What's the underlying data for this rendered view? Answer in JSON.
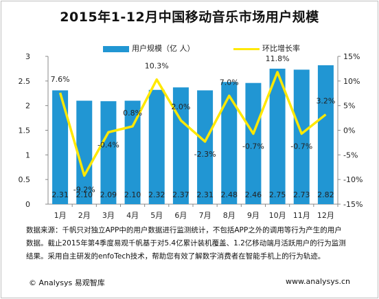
{
  "title": "2015年1-12月中国移动音乐市场用户规模",
  "legend": {
    "bar_label": "用户规模（亿 人）",
    "line_label": "环比增长率"
  },
  "note": "数据来源：千帆只对独立APP中的用户数据进行监测统计，不包括APP之外的调用等行为产生的用户数据。截止2015年第4季度易观千帆基于对5.4亿累计装机覆盖、1.2亿移动端月活跃用户的行为监测结果。采用自主研发的enfoTech技术，帮助您有效了解数字消费者在智能手机上的行为轨迹。",
  "footer": {
    "left": "© Analysys 易观智库",
    "right": "www.analysys.cn"
  },
  "colors": {
    "bar": "#2196d3",
    "line": "#ffe800"
  },
  "chart_data": {
    "type": "bar",
    "categories": [
      "1月",
      "2月",
      "3月",
      "4月",
      "5月",
      "6月",
      "7月",
      "8月",
      "9月",
      "10月",
      "11月",
      "12月"
    ],
    "series": [
      {
        "name": "用户规模（亿 人）",
        "type": "bar",
        "axis": "left",
        "values": [
          2.31,
          2.1,
          2.09,
          2.1,
          2.32,
          2.37,
          2.31,
          2.48,
          2.46,
          2.75,
          2.73,
          2.82
        ],
        "labels": [
          "2.31",
          "2.10",
          "2.09",
          "2.10",
          "2.32",
          "2.37",
          "2.31",
          "2.48",
          "2.46",
          "2.75",
          "2.73",
          "2.82"
        ]
      },
      {
        "name": "环比增长率",
        "type": "line",
        "axis": "right",
        "values": [
          7.6,
          -9.2,
          -0.4,
          0.8,
          10.3,
          2.0,
          -2.3,
          7.0,
          -0.7,
          11.8,
          -0.7,
          3.2
        ],
        "labels": [
          "7.6%",
          "-9.2%",
          "-0.4%",
          "0.8%",
          "10.3%",
          "2.0%",
          "-2.3%",
          "7.0%",
          "-0.7%",
          "11.8%",
          "-0.7%",
          "3.2%"
        ]
      }
    ],
    "y_left": {
      "ylim": [
        0,
        3
      ],
      "ticks": [
        "0",
        "0.5",
        "1",
        "1.5",
        "2",
        "2.5",
        "3"
      ]
    },
    "y_right": {
      "ylim": [
        -15,
        15
      ],
      "ticks": [
        "-15%",
        "-10%",
        "-5%",
        "0%",
        "5%",
        "10%",
        "15%"
      ]
    },
    "grid": false,
    "legend_position": "top"
  }
}
